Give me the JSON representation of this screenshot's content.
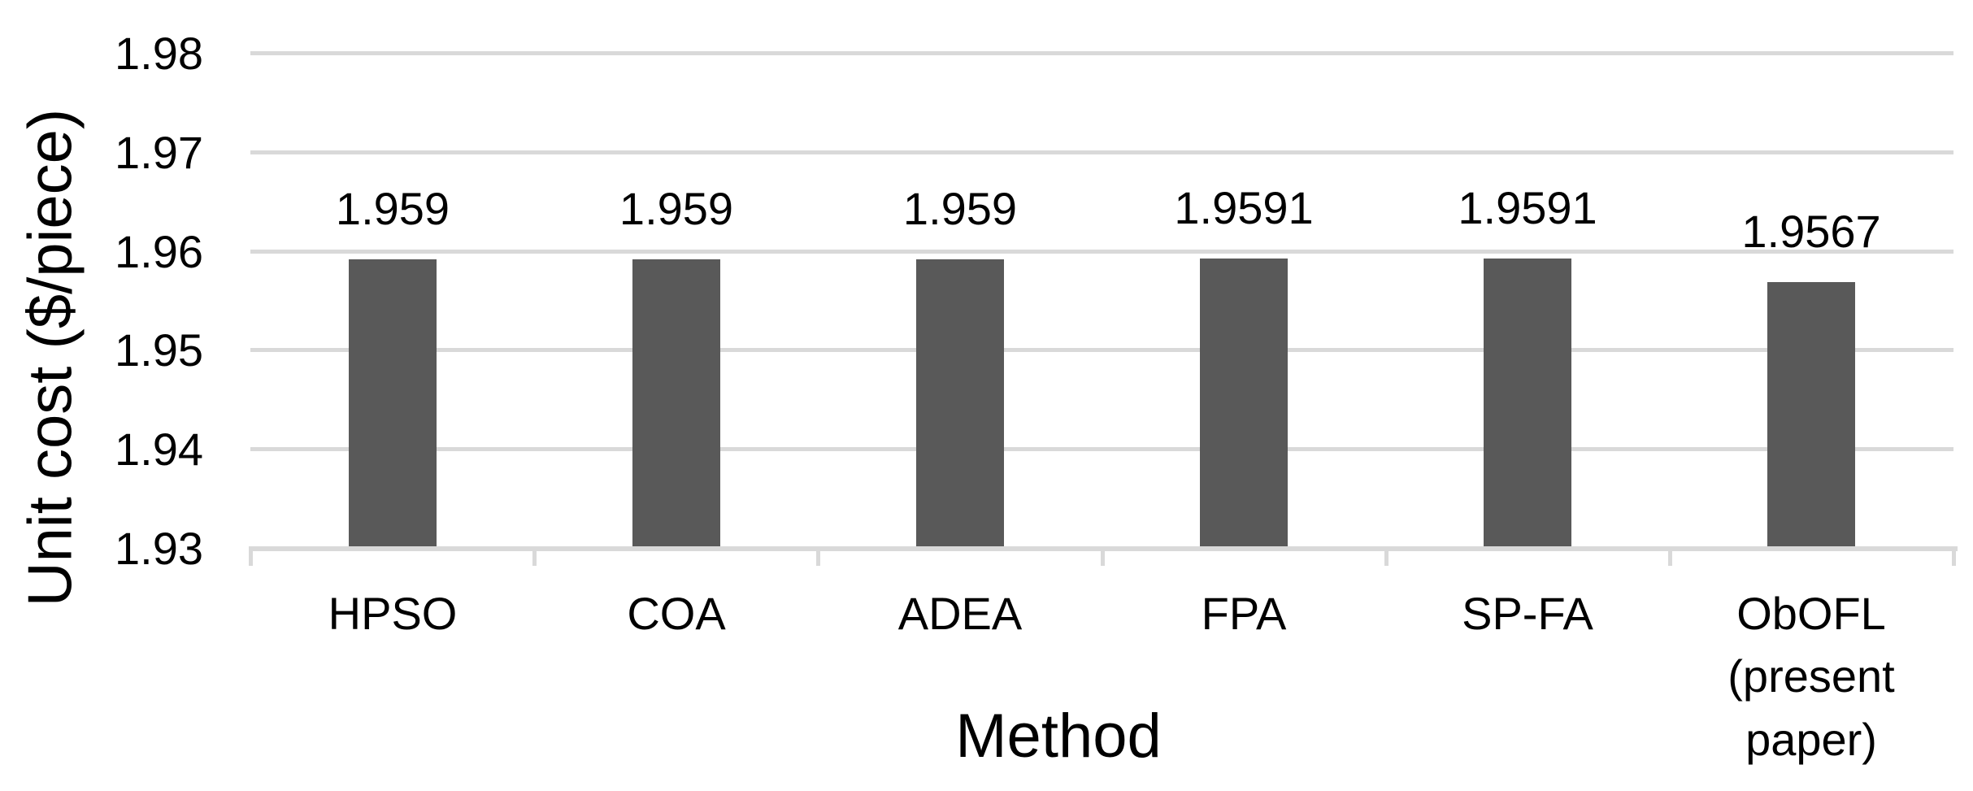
{
  "chart_data": {
    "type": "bar",
    "title": "",
    "categories": [
      "HPSO",
      "COA",
      "ADEA",
      "FPA",
      "SP-FA",
      "ObOFL\n(present\npaper)"
    ],
    "values": [
      1.959,
      1.959,
      1.959,
      1.9591,
      1.9591,
      1.9567
    ],
    "data_labels": [
      "1.959",
      "1.959",
      "1.959",
      "1.9591",
      "1.9591",
      "1.9567"
    ],
    "xlabel": "Method",
    "ylabel": "Unit cost ($/piece)",
    "ylim": [
      1.93,
      1.98
    ],
    "ytick_step": 0.01,
    "ytick_labels": [
      "1.93",
      "1.94",
      "1.95",
      "1.96",
      "1.97",
      "1.98"
    ],
    "grid": true,
    "legend_position": "none",
    "bar_color": "#595959",
    "axis_color": "#d9d9d9",
    "label_color": "#000000"
  }
}
